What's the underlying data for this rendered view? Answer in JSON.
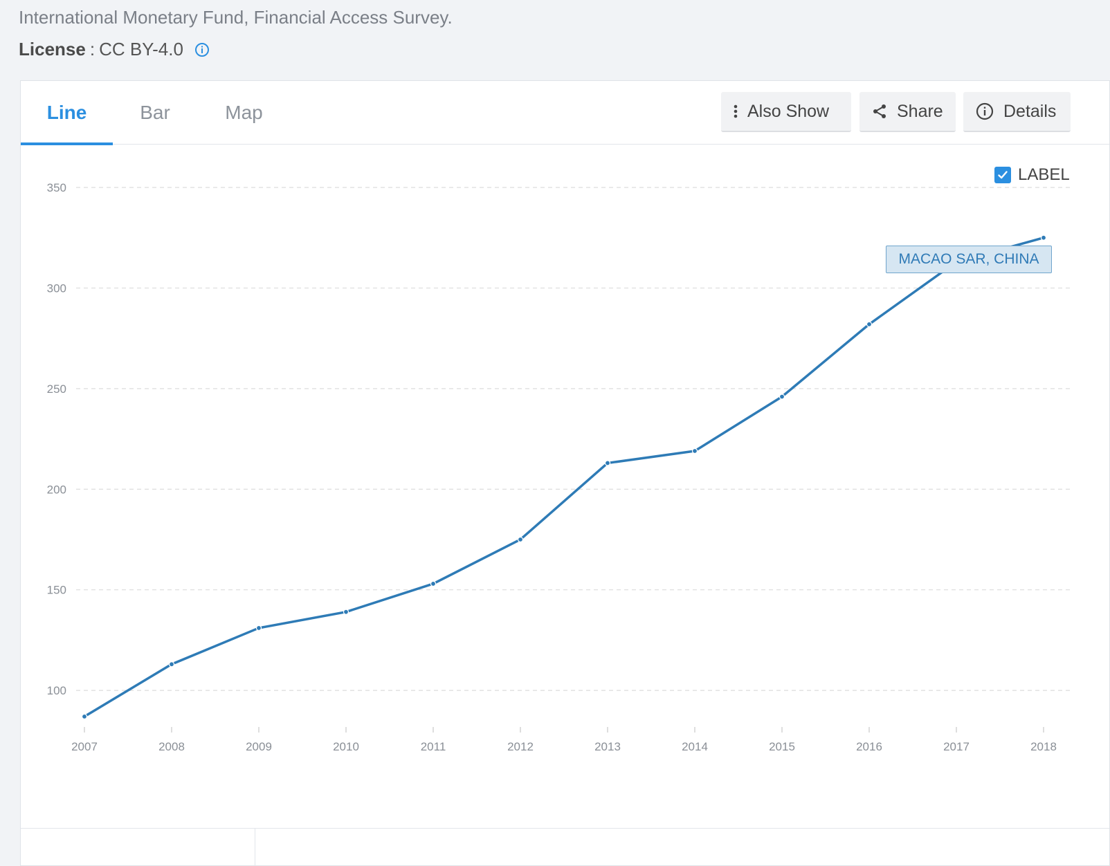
{
  "source": {
    "text": "International Monetary Fund, Financial Access Survey.",
    "license_label": "License",
    "license_sep": ":",
    "license_value": "CC BY-4.0"
  },
  "tabs": [
    {
      "label": "Line",
      "active": true
    },
    {
      "label": "Bar",
      "active": false
    },
    {
      "label": "Map",
      "active": false
    }
  ],
  "toolbar": {
    "also_show": "Also Show",
    "share": "Share",
    "details": "Details"
  },
  "label_toggle": {
    "text": "LABEL",
    "checked": true
  },
  "colors": {
    "accent": "#2b8fe0",
    "series": "#2e7bb6",
    "grid": "#dcdcdc",
    "tick_text": "#8a8f96"
  },
  "chart_data": {
    "type": "line",
    "x": [
      2007,
      2008,
      2009,
      2010,
      2011,
      2012,
      2013,
      2014,
      2015,
      2016,
      2017,
      2018
    ],
    "series": [
      {
        "name": "MACAO SAR, CHINA",
        "values": [
          87,
          113,
          131,
          139,
          153,
          175,
          213,
          219,
          246,
          282,
          313,
          325
        ]
      }
    ],
    "yticks": [
      100,
      150,
      200,
      250,
      300,
      350
    ],
    "ylim": [
      88,
      350
    ],
    "grid": true,
    "title": "",
    "xlabel": "",
    "ylabel": ""
  }
}
